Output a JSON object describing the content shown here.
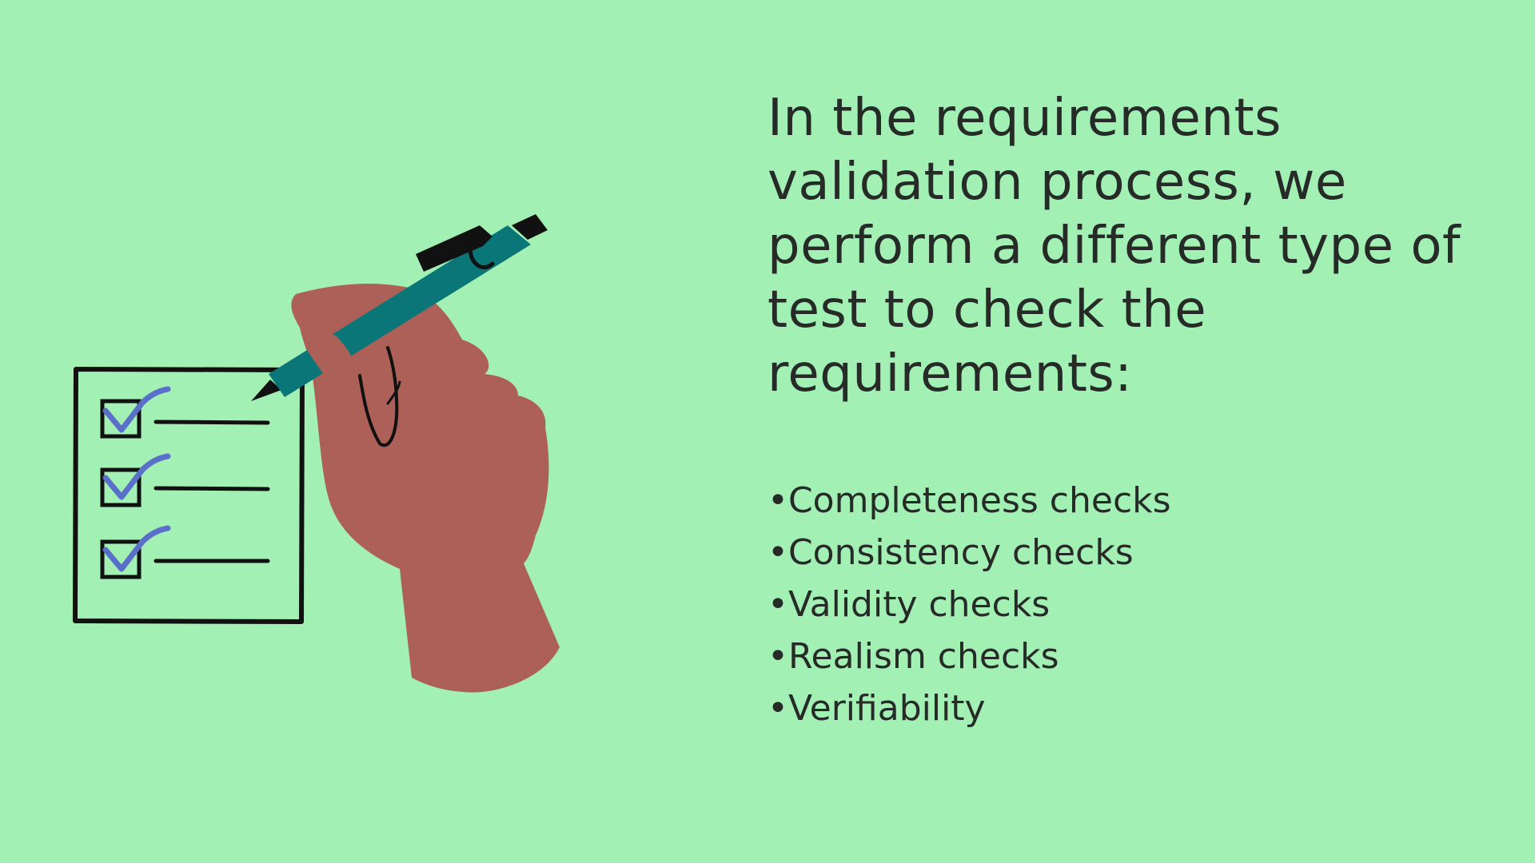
{
  "background_color": "#a3f0b5",
  "text_color": "#262b28",
  "illustration": {
    "name": "hand-writing-checklist",
    "colors": {
      "skin": "#ad6057",
      "pen": "#0a7678",
      "check": "#5a70c8",
      "ink": "#111111"
    }
  },
  "heading": "In the requirements validation process, we perform a different type of test to check the requirements:",
  "bullets": [
    "•Completeness checks",
    "•Consistency checks",
    "•Validity checks",
    "•Realism checks",
    "•Verifiability"
  ]
}
